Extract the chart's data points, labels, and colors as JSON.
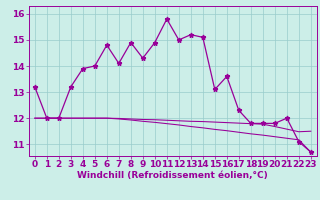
{
  "title": "",
  "xlabel": "Windchill (Refroidissement éolien,°C)",
  "background_color": "#cceee8",
  "line_color": "#990099",
  "grid_color": "#99cccc",
  "xlim": [
    -0.5,
    23.5
  ],
  "ylim": [
    10.55,
    16.3
  ],
  "yticks": [
    11,
    12,
    13,
    14,
    15,
    16
  ],
  "xticks": [
    0,
    1,
    2,
    3,
    4,
    5,
    6,
    7,
    8,
    9,
    10,
    11,
    12,
    13,
    14,
    15,
    16,
    17,
    18,
    19,
    20,
    21,
    22,
    23
  ],
  "series1_x": [
    0,
    1,
    2,
    3,
    4,
    5,
    6,
    7,
    8,
    9,
    10,
    11,
    12,
    13,
    14,
    15,
    16,
    17,
    18,
    19,
    20,
    21,
    22,
    23
  ],
  "series1_y": [
    13.2,
    12.0,
    12.0,
    13.2,
    13.9,
    14.0,
    14.8,
    14.1,
    14.9,
    14.3,
    14.9,
    15.8,
    15.0,
    15.2,
    15.1,
    13.1,
    13.6,
    12.3,
    11.8,
    11.8,
    11.8,
    12.0,
    11.1,
    10.7
  ],
  "series2_x": [
    0,
    1,
    2,
    3,
    4,
    5,
    6,
    7,
    8,
    9,
    10,
    11,
    12,
    13,
    14,
    15,
    16,
    17,
    18,
    19,
    20,
    21,
    22,
    23
  ],
  "series2_y": [
    12.0,
    12.0,
    12.0,
    12.0,
    12.0,
    12.0,
    12.0,
    11.97,
    11.93,
    11.88,
    11.84,
    11.79,
    11.74,
    11.68,
    11.63,
    11.57,
    11.52,
    11.46,
    11.4,
    11.35,
    11.29,
    11.23,
    11.17,
    10.7
  ],
  "series3_x": [
    0,
    1,
    2,
    3,
    4,
    5,
    6,
    7,
    8,
    9,
    10,
    11,
    12,
    13,
    14,
    15,
    16,
    17,
    18,
    19,
    20,
    21,
    22,
    23
  ],
  "series3_y": [
    12.0,
    12.0,
    12.0,
    12.0,
    12.0,
    12.0,
    12.0,
    11.99,
    11.97,
    11.95,
    11.94,
    11.92,
    11.9,
    11.88,
    11.87,
    11.85,
    11.83,
    11.81,
    11.79,
    11.77,
    11.68,
    11.58,
    11.48,
    11.5
  ],
  "fontsize_tick": 6.5,
  "fontsize_label": 6.5,
  "marker": "*",
  "markersize": 3.5,
  "linewidth": 0.9
}
